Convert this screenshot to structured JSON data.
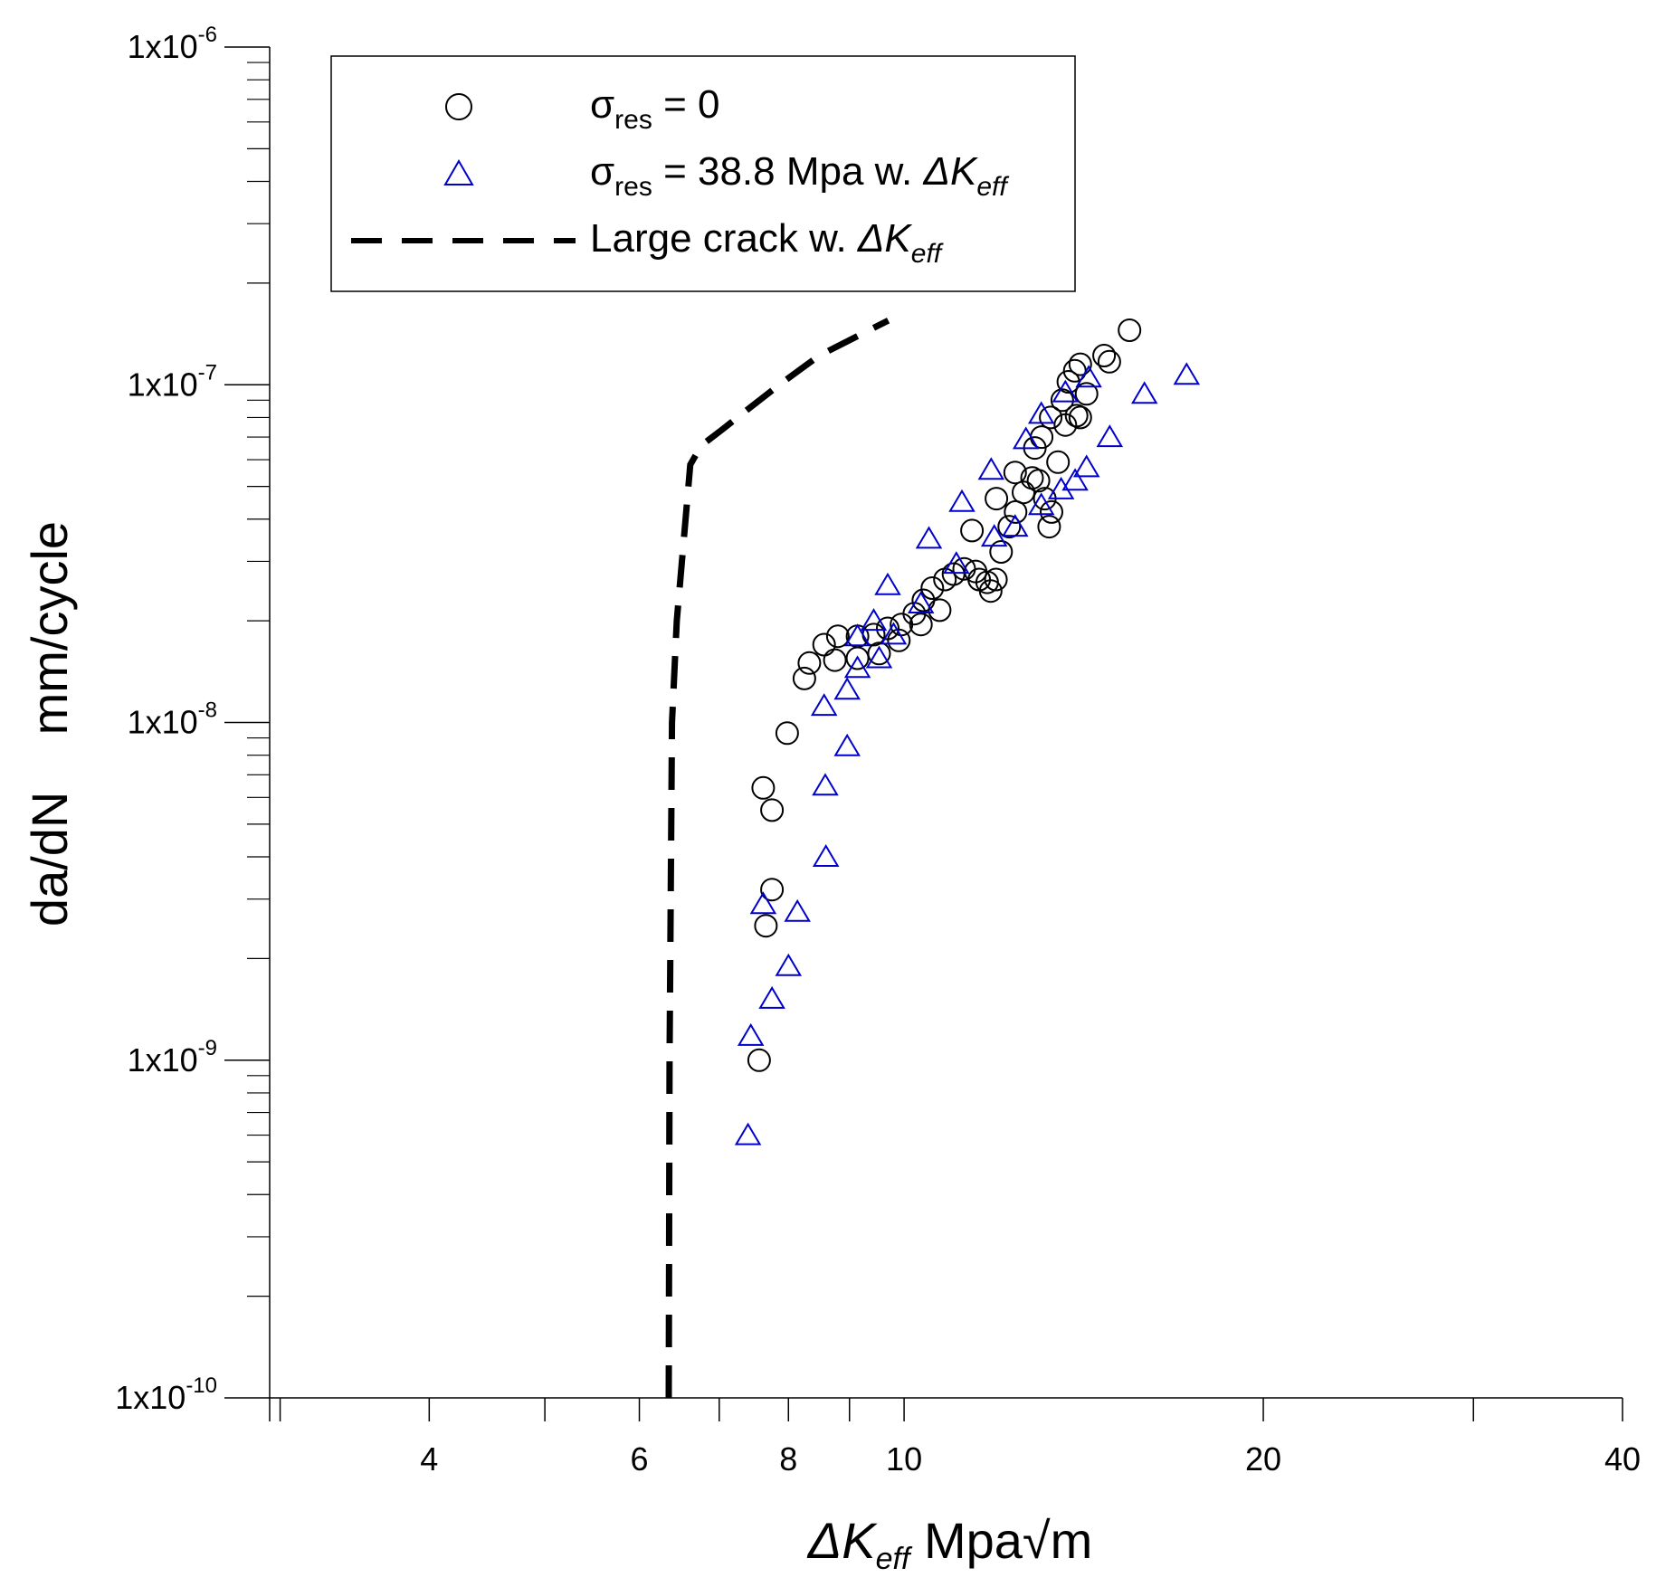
{
  "chart_data": {
    "type": "scatter",
    "x_scale": "log",
    "y_scale": "log",
    "xlim": [
      2.94,
      40
    ],
    "ylim": [
      1e-10,
      1e-06
    ],
    "xlabel": {
      "delta_k": "ΔK",
      "sub": "eff",
      "unit": "Mpa",
      "sqrt_symbol": "√",
      "sqrt_arg": "m"
    },
    "ylabel": {
      "left": "da/dN",
      "right": "mm/cycle"
    },
    "x_ticks": [
      {
        "value": 4,
        "label": "4"
      },
      {
        "value": 6,
        "label": "6"
      },
      {
        "value": 8,
        "label": "8"
      },
      {
        "value": 10,
        "label": "10"
      },
      {
        "value": 20,
        "label": "20"
      },
      {
        "value": 40,
        "label": "40"
      }
    ],
    "x_minor_ticks": [
      3,
      5,
      7,
      9,
      30
    ],
    "y_ticks": [
      {
        "value": 1e-06,
        "base": "1x10",
        "exp": "-6"
      },
      {
        "value": 1e-07,
        "base": "1x10",
        "exp": "-7"
      },
      {
        "value": 1e-08,
        "base": "1x10",
        "exp": "-8"
      },
      {
        "value": 1e-09,
        "base": "1x10",
        "exp": "-9"
      },
      {
        "value": 1e-10,
        "base": "1x10",
        "exp": "-10"
      }
    ],
    "legend": {
      "position": "top-left",
      "entries": [
        {
          "marker": "circle",
          "main": "σ",
          "sub": "res",
          "rest": " = 0",
          "suffix": "",
          "suffix_sub": ""
        },
        {
          "marker": "triangle",
          "main": "σ",
          "sub": "res",
          "rest": " = 38.8 Mpa w. ",
          "suffix": "ΔK",
          "suffix_sub": "eff"
        },
        {
          "marker": "dashed-line",
          "main": "Large crack w. ",
          "sub": "",
          "rest": "",
          "suffix": "ΔK",
          "suffix_sub": "eff"
        }
      ]
    },
    "series": [
      {
        "name": "σres = 0",
        "marker": "circle",
        "color": "#000000",
        "points": [
          [
            7.56,
            1e-09
          ],
          [
            7.62,
            6.4e-09
          ],
          [
            7.66,
            2.5e-09
          ],
          [
            7.75,
            5.5e-09
          ],
          [
            7.75,
            3.2e-09
          ],
          [
            7.98,
            9.3e-09
          ],
          [
            8.25,
            1.35e-08
          ],
          [
            8.33,
            1.5e-08
          ],
          [
            8.57,
            1.7e-08
          ],
          [
            8.75,
            1.53e-08
          ],
          [
            8.8,
            1.8e-08
          ],
          [
            9.14,
            1.8e-08
          ],
          [
            9.14,
            1.55e-08
          ],
          [
            9.43,
            1.82e-08
          ],
          [
            9.53,
            1.6e-08
          ],
          [
            9.69,
            1.9e-08
          ],
          [
            9.9,
            1.75e-08
          ],
          [
            9.95,
            1.95e-08
          ],
          [
            10.2,
            2.1e-08
          ],
          [
            10.33,
            1.95e-08
          ],
          [
            10.38,
            2.3e-08
          ],
          [
            10.56,
            2.5e-08
          ],
          [
            10.71,
            2.15e-08
          ],
          [
            10.82,
            2.65e-08
          ],
          [
            11.0,
            2.75e-08
          ],
          [
            11.23,
            2.85e-08
          ],
          [
            11.4,
            3.7e-08
          ],
          [
            11.48,
            2.8e-08
          ],
          [
            11.56,
            2.65e-08
          ],
          [
            11.74,
            2.6e-08
          ],
          [
            11.82,
            2.45e-08
          ],
          [
            11.94,
            2.65e-08
          ],
          [
            11.95,
            4.6e-08
          ],
          [
            12.06,
            3.2e-08
          ],
          [
            12.25,
            3.8e-08
          ],
          [
            12.39,
            5.5e-08
          ],
          [
            12.4,
            4.2e-08
          ],
          [
            12.59,
            4.8e-08
          ],
          [
            12.8,
            5.3e-08
          ],
          [
            12.87,
            6.5e-08
          ],
          [
            12.96,
            5.2e-08
          ],
          [
            13.04,
            7e-08
          ],
          [
            13.12,
            4.6e-08
          ],
          [
            13.23,
            3.8e-08
          ],
          [
            13.29,
            4.2e-08
          ],
          [
            13.27,
            8e-08
          ],
          [
            13.46,
            5.9e-08
          ],
          [
            13.57,
            9e-08
          ],
          [
            13.65,
            7.6e-08
          ],
          [
            13.73,
            1.02e-07
          ],
          [
            13.9,
            1.1e-07
          ],
          [
            13.95,
            8.1e-08
          ],
          [
            14.05,
            8e-08
          ],
          [
            14.05,
            1.15e-07
          ],
          [
            14.22,
            9.4e-08
          ],
          [
            14.71,
            1.22e-07
          ],
          [
            14.86,
            1.17e-07
          ],
          [
            15.45,
            1.45e-07
          ]
        ]
      },
      {
        "name": "σres = 38.8 Mpa w. ΔKeff",
        "marker": "triangle",
        "color": "#0000cc",
        "points": [
          [
            7.4,
            6e-10
          ],
          [
            7.44,
            1.18e-09
          ],
          [
            7.62,
            2.9e-09
          ],
          [
            7.75,
            1.52e-09
          ],
          [
            8.0,
            1.9e-09
          ],
          [
            8.14,
            2.75e-09
          ],
          [
            8.57,
            1.12e-08
          ],
          [
            8.59,
            6.5e-09
          ],
          [
            8.6,
            4e-09
          ],
          [
            8.96,
            8.5e-09
          ],
          [
            8.96,
            1.25e-08
          ],
          [
            9.14,
            1.45e-08
          ],
          [
            9.14,
            1.8e-08
          ],
          [
            9.43,
            2e-08
          ],
          [
            9.53,
            1.55e-08
          ],
          [
            9.69,
            2.55e-08
          ],
          [
            9.8,
            1.82e-08
          ],
          [
            10.33,
            2.25e-08
          ],
          [
            10.49,
            3.5e-08
          ],
          [
            11.06,
            2.95e-08
          ],
          [
            11.18,
            4.5e-08
          ],
          [
            11.83,
            5.6e-08
          ],
          [
            11.9,
            3.55e-08
          ],
          [
            12.39,
            3.8e-08
          ],
          [
            12.65,
            6.9e-08
          ],
          [
            13.03,
            8.2e-08
          ],
          [
            13.03,
            4.4e-08
          ],
          [
            13.54,
            4.9e-08
          ],
          [
            13.65,
            9.5e-08
          ],
          [
            13.91,
            5.2e-08
          ],
          [
            14.22,
            5.7e-08
          ],
          [
            14.28,
            1.05e-07
          ],
          [
            14.87,
            7e-08
          ],
          [
            15.9,
            9.4e-08
          ],
          [
            17.25,
            1.07e-07
          ]
        ]
      },
      {
        "name": "Large crack w. ΔKeff",
        "marker": "dashed-line",
        "color": "#000000",
        "points": [
          [
            6.35,
            1e-10
          ],
          [
            6.36,
            1e-09
          ],
          [
            6.39,
            1e-08
          ],
          [
            6.45,
            2e-08
          ],
          [
            6.56,
            4e-08
          ],
          [
            6.62,
            5.8e-08
          ],
          [
            6.76,
            6.6e-08
          ],
          [
            7.05,
            7.4e-08
          ],
          [
            7.41,
            8.5e-08
          ],
          [
            7.86,
            1e-07
          ],
          [
            8.49,
            1.22e-07
          ],
          [
            9.7,
            1.55e-07
          ]
        ]
      }
    ]
  }
}
